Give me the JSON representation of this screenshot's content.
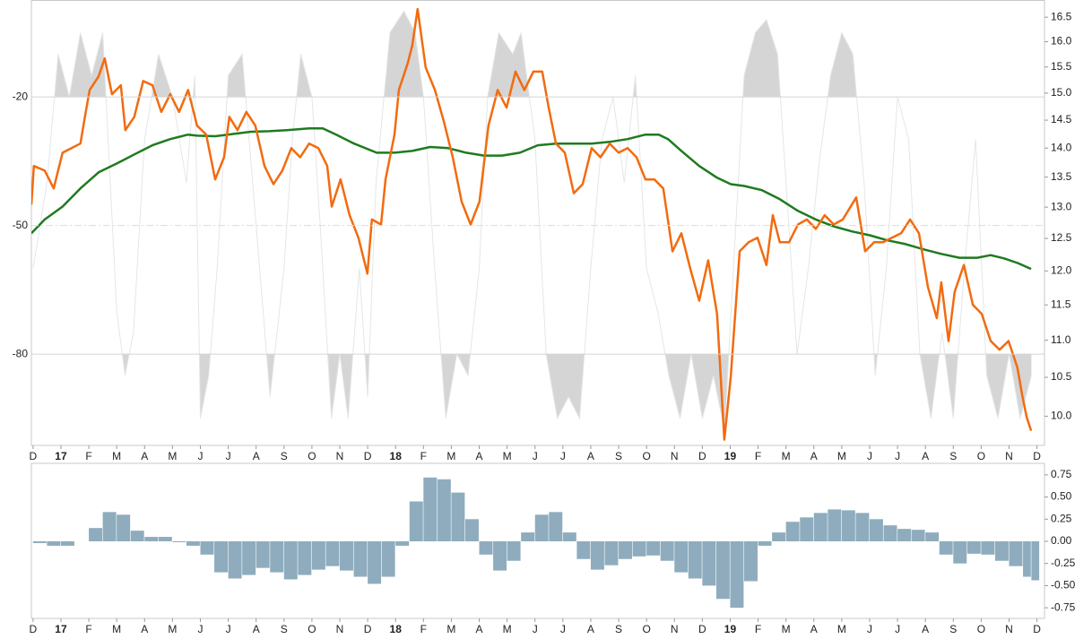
{
  "chart_data": [
    {
      "type": "line",
      "log_y": true,
      "xlim": [
        -0.06,
        36.27
      ],
      "ylim": [
        9.64,
        16.86
      ],
      "y2lim": [
        -101.3,
        2.6
      ],
      "xticks": [
        {
          "value": 0,
          "label": "D"
        },
        {
          "value": 1,
          "label": "17"
        },
        {
          "value": 2,
          "label": "F"
        },
        {
          "value": 3,
          "label": "M"
        },
        {
          "value": 4,
          "label": "A"
        },
        {
          "value": 5,
          "label": "M"
        },
        {
          "value": 6,
          "label": "J"
        },
        {
          "value": 7,
          "label": "J"
        },
        {
          "value": 8,
          "label": "A"
        },
        {
          "value": 9,
          "label": "S"
        },
        {
          "value": 10,
          "label": "O"
        },
        {
          "value": 11,
          "label": "N"
        },
        {
          "value": 12,
          "label": "D"
        },
        {
          "value": 13,
          "label": "18"
        },
        {
          "value": 14,
          "label": "F"
        },
        {
          "value": 15,
          "label": "M"
        },
        {
          "value": 16,
          "label": "A"
        },
        {
          "value": 17,
          "label": "M"
        },
        {
          "value": 18,
          "label": "J"
        },
        {
          "value": 19,
          "label": "J"
        },
        {
          "value": 20,
          "label": "A"
        },
        {
          "value": 21,
          "label": "S"
        },
        {
          "value": 22,
          "label": "O"
        },
        {
          "value": 23,
          "label": "N"
        },
        {
          "value": 24,
          "label": "D"
        },
        {
          "value": 25,
          "label": "19"
        },
        {
          "value": 26,
          "label": "F"
        },
        {
          "value": 27,
          "label": "M"
        },
        {
          "value": 28,
          "label": "A"
        },
        {
          "value": 29,
          "label": "M"
        },
        {
          "value": 30,
          "label": "J"
        },
        {
          "value": 31,
          "label": "J"
        },
        {
          "value": 32,
          "label": "A"
        },
        {
          "value": 33,
          "label": "S"
        },
        {
          "value": 34,
          "label": "O"
        },
        {
          "value": 35,
          "label": "N"
        },
        {
          "value": 36,
          "label": "D"
        }
      ],
      "yticks": [
        {
          "value": 10,
          "label": "10.0"
        },
        10.5,
        {
          "value": 11,
          "label": "11.0"
        },
        11.5,
        {
          "value": 12,
          "label": "12.0"
        },
        12.5,
        {
          "value": 13,
          "label": "13.0"
        },
        13.5,
        {
          "value": 14,
          "label": "14.0"
        },
        14.5,
        {
          "value": 15,
          "label": "15.0"
        },
        15.5,
        {
          "value": 16,
          "label": "16.0"
        },
        16.5
      ],
      "y2ticks": [
        -80,
        -50,
        -20
      ],
      "series": [
        {
          "axis": "y2",
          "color": "#e2e7ea",
          "fill_color": "#d5d5d5",
          "x": [
            0,
            0.5,
            0.9,
            1.3,
            1.7,
            2.1,
            2.5,
            3.0,
            3.3,
            3.6,
            4.0,
            4.5,
            5.0,
            5.5,
            5.8,
            6.0,
            6.3,
            6.6,
            7.0,
            7.5,
            8.0,
            8.5,
            9.0,
            9.3,
            9.6,
            10.0,
            10.3,
            10.7,
            11.0,
            11.3,
            11.7,
            12.0,
            12.3,
            12.8,
            13.3,
            13.7,
            14.0,
            14.4,
            14.8,
            15.2,
            15.6,
            16.0,
            16.3,
            16.7,
            17.2,
            17.5,
            18.0,
            18.4,
            18.8,
            19.2,
            19.6,
            20.0,
            20.4,
            20.8,
            21.2,
            21.6,
            22.0,
            22.4,
            22.8,
            23.2,
            23.6,
            24.0,
            24.4,
            24.8,
            25.2,
            25.5,
            25.9,
            26.3,
            26.7,
            27.0,
            27.4,
            27.8,
            28.2,
            28.6,
            29.0,
            29.4,
            29.8,
            30.2,
            30.6,
            31.0,
            31.4,
            31.8,
            32.2,
            32.6,
            33.0,
            33.4,
            33.8,
            34.2,
            34.6,
            35.0,
            35.4,
            35.8
          ],
          "values": [
            -60,
            -40,
            -10,
            -20,
            -5,
            -15,
            -5,
            -70,
            -85,
            -75,
            -30,
            -10,
            -20,
            -40,
            -15,
            -95,
            -85,
            -60,
            -15,
            -10,
            -50,
            -90,
            -60,
            -30,
            -10,
            -20,
            -50,
            -95,
            -80,
            -95,
            -60,
            -90,
            -40,
            -5,
            0,
            -5,
            -20,
            -60,
            -95,
            -80,
            -85,
            -60,
            -20,
            -5,
            -10,
            -5,
            -30,
            -80,
            -95,
            -90,
            -95,
            -60,
            -30,
            -20,
            -40,
            -15,
            -60,
            -70,
            -85,
            -95,
            -80,
            -95,
            -85,
            -98,
            -50,
            -15,
            -5,
            -2,
            -10,
            -40,
            -80,
            -60,
            -35,
            -15,
            -5,
            -10,
            -40,
            -85,
            -60,
            -20,
            -30,
            -80,
            -95,
            -75,
            -95,
            -60,
            -30,
            -85,
            -95,
            -80,
            -95,
            -85
          ]
        },
        {
          "color": "#1f7a1f",
          "x": [
            -0.06,
            0.42,
            1.06,
            1.7,
            2.35,
            2.99,
            3.63,
            4.28,
            4.92,
            5.56,
            5.88,
            6.53,
            7.17,
            7.81,
            8.46,
            9.1,
            9.9,
            10.39,
            10.87,
            11.51,
            12.32,
            12.96,
            13.6,
            14.24,
            14.89,
            15.53,
            16.17,
            16.82,
            17.46,
            18.1,
            18.75,
            19.39,
            20.03,
            20.68,
            21.32,
            21.96,
            22.44,
            22.77,
            23.25,
            23.89,
            24.53,
            25.02,
            25.5,
            26.14,
            26.78,
            27.43,
            28.07,
            28.71,
            29.36,
            30.0,
            30.64,
            31.29,
            31.93,
            32.57,
            33.22,
            33.86,
            34.34,
            34.82,
            35.31,
            35.79
          ],
          "values": [
            12.58,
            12.8,
            13.01,
            13.31,
            13.58,
            13.73,
            13.89,
            14.05,
            14.16,
            14.24,
            14.22,
            14.21,
            14.25,
            14.29,
            14.3,
            14.32,
            14.35,
            14.35,
            14.24,
            14.08,
            13.92,
            13.92,
            13.95,
            14.02,
            14.0,
            13.92,
            13.87,
            13.87,
            13.92,
            14.05,
            14.08,
            14.08,
            14.08,
            14.11,
            14.16,
            14.24,
            14.24,
            14.16,
            13.95,
            13.69,
            13.49,
            13.38,
            13.35,
            13.28,
            13.13,
            12.94,
            12.8,
            12.69,
            12.61,
            12.55,
            12.47,
            12.41,
            12.33,
            12.26,
            12.2,
            12.2,
            12.24,
            12.19,
            12.12,
            12.03
          ]
        },
        {
          "color": "#f26b0f",
          "x": [
            -0.06,
            0.03,
            0.42,
            0.74,
            1.06,
            1.38,
            1.7,
            1.86,
            2.03,
            2.35,
            2.57,
            2.83,
            3.15,
            3.31,
            3.63,
            3.95,
            4.28,
            4.6,
            4.92,
            5.24,
            5.56,
            5.88,
            6.21,
            6.53,
            6.85,
            7.04,
            7.33,
            7.65,
            7.97,
            8.3,
            8.62,
            8.94,
            9.26,
            9.58,
            9.9,
            10.23,
            10.55,
            10.71,
            11.03,
            11.35,
            11.67,
            11.99,
            12.15,
            12.48,
            12.64,
            12.96,
            13.12,
            13.44,
            13.6,
            13.79,
            14.08,
            14.41,
            14.73,
            15.05,
            15.37,
            15.69,
            16.01,
            16.33,
            16.66,
            16.98,
            17.3,
            17.62,
            17.94,
            18.26,
            18.49,
            18.75,
            19.07,
            19.39,
            19.71,
            20.03,
            20.35,
            20.68,
            21.0,
            21.32,
            21.64,
            21.96,
            22.28,
            22.6,
            22.93,
            23.25,
            23.57,
            23.89,
            24.21,
            24.53,
            24.79,
            25.02,
            25.34,
            25.66,
            25.98,
            26.3,
            26.53,
            26.78,
            27.11,
            27.43,
            27.75,
            28.07,
            28.39,
            28.71,
            29.04,
            29.52,
            29.84,
            30.16,
            30.48,
            30.8,
            31.13,
            31.45,
            31.77,
            32.09,
            32.41,
            32.57,
            32.83,
            33.05,
            33.38,
            33.7,
            34.02,
            34.34,
            34.66,
            34.98,
            35.3,
            35.47,
            35.63,
            35.79
          ],
          "values": [
            13.04,
            13.69,
            13.61,
            13.31,
            13.92,
            14.0,
            14.08,
            14.56,
            15.06,
            15.32,
            15.67,
            14.98,
            15.15,
            14.32,
            14.56,
            15.23,
            15.15,
            14.65,
            14.98,
            14.65,
            15.06,
            14.4,
            14.24,
            13.46,
            13.84,
            14.56,
            14.32,
            14.65,
            14.4,
            13.69,
            13.38,
            13.61,
            14.0,
            13.84,
            14.08,
            14.0,
            13.69,
            13.01,
            13.46,
            12.87,
            12.51,
            11.96,
            12.8,
            12.72,
            13.46,
            14.24,
            15.06,
            15.58,
            15.93,
            16.67,
            15.49,
            15.06,
            14.48,
            13.84,
            13.09,
            12.72,
            13.09,
            14.4,
            15.06,
            14.73,
            15.41,
            15.06,
            15.41,
            15.41,
            14.73,
            14.08,
            13.92,
            13.23,
            13.38,
            14.0,
            13.84,
            14.08,
            13.92,
            14.0,
            13.84,
            13.46,
            13.46,
            13.31,
            12.3,
            12.58,
            12.03,
            11.56,
            12.16,
            11.37,
            9.71,
            10.51,
            12.3,
            12.44,
            12.51,
            12.09,
            12.87,
            12.44,
            12.44,
            12.72,
            12.8,
            12.65,
            12.87,
            12.72,
            12.8,
            13.16,
            12.3,
            12.44,
            12.44,
            12.51,
            12.58,
            12.8,
            12.58,
            11.76,
            11.31,
            11.83,
            10.99,
            11.69,
            12.09,
            11.5,
            11.37,
            10.99,
            10.87,
            10.99,
            10.63,
            10.27,
            9.99,
            9.82
          ]
        }
      ]
    },
    {
      "type": "bar",
      "color": "#8eacbd",
      "xlim": [
        -0.06,
        36.27
      ],
      "ylim": [
        -0.87,
        0.88
      ],
      "xticks": [
        {
          "value": 0,
          "label": "D"
        },
        {
          "value": 1,
          "label": "17"
        },
        {
          "value": 2,
          "label": "F"
        },
        {
          "value": 3,
          "label": "M"
        },
        {
          "value": 4,
          "label": "A"
        },
        {
          "value": 5,
          "label": "M"
        },
        {
          "value": 6,
          "label": "J"
        },
        {
          "value": 7,
          "label": "J"
        },
        {
          "value": 8,
          "label": "A"
        },
        {
          "value": 9,
          "label": "S"
        },
        {
          "value": 10,
          "label": "O"
        },
        {
          "value": 11,
          "label": "N"
        },
        {
          "value": 12,
          "label": "D"
        },
        {
          "value": 13,
          "label": "18"
        },
        {
          "value": 14,
          "label": "F"
        },
        {
          "value": 15,
          "label": "M"
        },
        {
          "value": 16,
          "label": "A"
        },
        {
          "value": 17,
          "label": "M"
        },
        {
          "value": 18,
          "label": "J"
        },
        {
          "value": 19,
          "label": "J"
        },
        {
          "value": 20,
          "label": "A"
        },
        {
          "value": 21,
          "label": "S"
        },
        {
          "value": 22,
          "label": "O"
        },
        {
          "value": 23,
          "label": "N"
        },
        {
          "value": 24,
          "label": "D"
        },
        {
          "value": 25,
          "label": "19"
        },
        {
          "value": 26,
          "label": "F"
        },
        {
          "value": 27,
          "label": "M"
        },
        {
          "value": 28,
          "label": "A"
        },
        {
          "value": 29,
          "label": "M"
        },
        {
          "value": 30,
          "label": "J"
        },
        {
          "value": 31,
          "label": "J"
        },
        {
          "value": 32,
          "label": "A"
        },
        {
          "value": 33,
          "label": "S"
        },
        {
          "value": 34,
          "label": "O"
        },
        {
          "value": 35,
          "label": "N"
        },
        {
          "value": 36,
          "label": "D"
        }
      ],
      "yticks": [
        -0.75,
        {
          "value": -0.5,
          "label": "-0.50"
        },
        -0.25,
        {
          "value": 0,
          "label": "0.00"
        },
        0.25,
        {
          "value": 0.5,
          "label": "0.50"
        },
        0.75
      ],
      "x": [
        0,
        0.5,
        1,
        1.5,
        2,
        2.5,
        3,
        3.5,
        4,
        4.5,
        5,
        5.5,
        6,
        6.5,
        7,
        7.5,
        8,
        8.5,
        9,
        9.5,
        10,
        10.5,
        11,
        11.5,
        12,
        12.5,
        13,
        13.5,
        14,
        14.5,
        15,
        15.5,
        16,
        16.5,
        17,
        17.5,
        18,
        18.5,
        19,
        19.5,
        20,
        20.5,
        21,
        21.5,
        22,
        22.5,
        23,
        23.5,
        24,
        24.5,
        25,
        25.5,
        26,
        26.5,
        27,
        27.5,
        28,
        28.5,
        29,
        29.5,
        30,
        30.5,
        31,
        31.5,
        32,
        32.5,
        33,
        33.5,
        34,
        34.5,
        35,
        35.5,
        35.8
      ],
      "values": [
        -0.02,
        -0.05,
        -0.05,
        0.0,
        0.15,
        0.33,
        0.3,
        0.12,
        0.05,
        0.05,
        -0.01,
        -0.05,
        -0.15,
        -0.35,
        -0.42,
        -0.38,
        -0.3,
        -0.35,
        -0.43,
        -0.38,
        -0.32,
        -0.28,
        -0.33,
        -0.4,
        -0.48,
        -0.4,
        -0.05,
        0.45,
        0.72,
        0.7,
        0.55,
        0.25,
        -0.15,
        -0.33,
        -0.22,
        0.1,
        0.3,
        0.33,
        0.1,
        -0.2,
        -0.32,
        -0.27,
        -0.2,
        -0.17,
        -0.16,
        -0.22,
        -0.35,
        -0.42,
        -0.5,
        -0.65,
        -0.75,
        -0.45,
        -0.05,
        0.1,
        0.22,
        0.27,
        0.32,
        0.36,
        0.35,
        0.32,
        0.25,
        0.18,
        0.14,
        0.13,
        0.1,
        -0.15,
        -0.25,
        -0.14,
        -0.15,
        -0.22,
        -0.28,
        -0.4,
        -0.44
      ]
    }
  ]
}
